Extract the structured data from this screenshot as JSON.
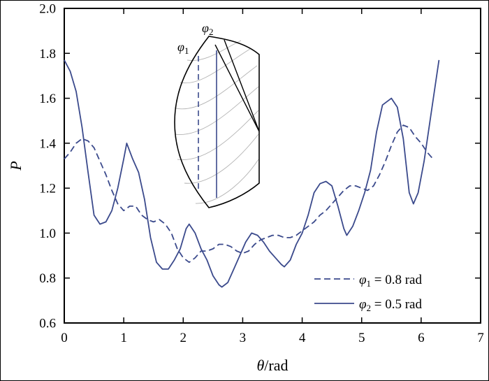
{
  "figure": {
    "background": "#ffffff",
    "border_color": "#000000",
    "line_color": "#3b4a8c",
    "axis_color": "#000000"
  },
  "chart_data": {
    "type": "line",
    "title": "",
    "xlabel": "θ/rad",
    "xlabel_parts": {
      "symbol": "θ",
      "rest": "/rad"
    },
    "ylabel": "P",
    "xlim": [
      0,
      7
    ],
    "ylim": [
      0.6,
      2.0
    ],
    "xtick_labels": [
      "0",
      "1",
      "2",
      "3",
      "4",
      "5",
      "6",
      "7"
    ],
    "ytick_labels": [
      "0.6",
      "0.8",
      "1.0",
      "1.2",
      "1.4",
      "1.6",
      "1.8",
      "2.0"
    ],
    "grid": false,
    "axis_color": "#000000",
    "legend_position": "inside lower right",
    "legend": [
      {
        "symbol": "φ",
        "sub": "1",
        "rest": " = 0.8 rad",
        "label": "φ1 = 0.8 rad",
        "style": "dashed",
        "color": "#3b4a8c"
      },
      {
        "symbol": "φ",
        "sub": "2",
        "rest": " = 0.5 rad",
        "label": "φ2 = 0.5 rad",
        "style": "solid",
        "color": "#3b4a8c"
      }
    ],
    "series": [
      {
        "id": "phi1",
        "name": "φ1 = 0.8 rad",
        "style": "dashed",
        "color": "#3b4a8c",
        "points": [
          [
            0,
            1.33
          ],
          [
            0.1,
            1.36
          ],
          [
            0.2,
            1.4
          ],
          [
            0.3,
            1.42
          ],
          [
            0.4,
            1.41
          ],
          [
            0.5,
            1.38
          ],
          [
            0.6,
            1.32
          ],
          [
            0.7,
            1.26
          ],
          [
            0.8,
            1.19
          ],
          [
            0.9,
            1.13
          ],
          [
            1.0,
            1.1
          ],
          [
            1.1,
            1.12
          ],
          [
            1.2,
            1.12
          ],
          [
            1.3,
            1.08
          ],
          [
            1.4,
            1.06
          ],
          [
            1.5,
            1.05
          ],
          [
            1.6,
            1.06
          ],
          [
            1.7,
            1.04
          ],
          [
            1.8,
            1.0
          ],
          [
            1.9,
            0.93
          ],
          [
            2.0,
            0.89
          ],
          [
            2.1,
            0.87
          ],
          [
            2.2,
            0.89
          ],
          [
            2.3,
            0.92
          ],
          [
            2.4,
            0.92
          ],
          [
            2.5,
            0.93
          ],
          [
            2.6,
            0.95
          ],
          [
            2.7,
            0.95
          ],
          [
            2.8,
            0.94
          ],
          [
            2.9,
            0.92
          ],
          [
            3.0,
            0.91
          ],
          [
            3.1,
            0.92
          ],
          [
            3.2,
            0.95
          ],
          [
            3.3,
            0.97
          ],
          [
            3.4,
            0.98
          ],
          [
            3.5,
            0.99
          ],
          [
            3.6,
            0.99
          ],
          [
            3.7,
            0.98
          ],
          [
            3.8,
            0.98
          ],
          [
            3.9,
            0.99
          ],
          [
            4.0,
            1.01
          ],
          [
            4.1,
            1.03
          ],
          [
            4.2,
            1.05
          ],
          [
            4.3,
            1.08
          ],
          [
            4.4,
            1.1
          ],
          [
            4.5,
            1.13
          ],
          [
            4.6,
            1.16
          ],
          [
            4.7,
            1.19
          ],
          [
            4.8,
            1.21
          ],
          [
            4.9,
            1.21
          ],
          [
            5.0,
            1.2
          ],
          [
            5.1,
            1.19
          ],
          [
            5.2,
            1.21
          ],
          [
            5.3,
            1.26
          ],
          [
            5.4,
            1.32
          ],
          [
            5.5,
            1.39
          ],
          [
            5.6,
            1.45
          ],
          [
            5.7,
            1.48
          ],
          [
            5.8,
            1.47
          ],
          [
            5.9,
            1.43
          ],
          [
            6.0,
            1.4
          ],
          [
            6.1,
            1.36
          ],
          [
            6.2,
            1.33
          ]
        ]
      },
      {
        "id": "phi2",
        "name": "φ2 = 0.5 rad",
        "style": "solid",
        "color": "#3b4a8c",
        "points": [
          [
            0,
            1.77
          ],
          [
            0.1,
            1.72
          ],
          [
            0.2,
            1.63
          ],
          [
            0.3,
            1.47
          ],
          [
            0.4,
            1.27
          ],
          [
            0.5,
            1.08
          ],
          [
            0.6,
            1.04
          ],
          [
            0.7,
            1.05
          ],
          [
            0.8,
            1.1
          ],
          [
            0.9,
            1.2
          ],
          [
            1.0,
            1.33
          ],
          [
            1.05,
            1.4
          ],
          [
            1.15,
            1.33
          ],
          [
            1.25,
            1.27
          ],
          [
            1.35,
            1.15
          ],
          [
            1.45,
            0.98
          ],
          [
            1.55,
            0.87
          ],
          [
            1.65,
            0.84
          ],
          [
            1.75,
            0.84
          ],
          [
            1.85,
            0.88
          ],
          [
            1.95,
            0.93
          ],
          [
            2.05,
            1.02
          ],
          [
            2.1,
            1.04
          ],
          [
            2.2,
            1.0
          ],
          [
            2.3,
            0.93
          ],
          [
            2.4,
            0.88
          ],
          [
            2.5,
            0.81
          ],
          [
            2.6,
            0.77
          ],
          [
            2.65,
            0.76
          ],
          [
            2.75,
            0.78
          ],
          [
            2.85,
            0.84
          ],
          [
            2.95,
            0.9
          ],
          [
            3.05,
            0.96
          ],
          [
            3.15,
            1.0
          ],
          [
            3.25,
            0.99
          ],
          [
            3.35,
            0.96
          ],
          [
            3.45,
            0.92
          ],
          [
            3.55,
            0.89
          ],
          [
            3.65,
            0.86
          ],
          [
            3.7,
            0.85
          ],
          [
            3.8,
            0.88
          ],
          [
            3.9,
            0.95
          ],
          [
            4.0,
            1.0
          ],
          [
            4.1,
            1.08
          ],
          [
            4.2,
            1.18
          ],
          [
            4.3,
            1.22
          ],
          [
            4.4,
            1.23
          ],
          [
            4.5,
            1.21
          ],
          [
            4.6,
            1.12
          ],
          [
            4.7,
            1.02
          ],
          [
            4.75,
            0.99
          ],
          [
            4.85,
            1.03
          ],
          [
            4.95,
            1.1
          ],
          [
            5.05,
            1.18
          ],
          [
            5.15,
            1.28
          ],
          [
            5.25,
            1.45
          ],
          [
            5.35,
            1.57
          ],
          [
            5.45,
            1.59
          ],
          [
            5.5,
            1.6
          ],
          [
            5.6,
            1.56
          ],
          [
            5.7,
            1.42
          ],
          [
            5.8,
            1.18
          ],
          [
            5.87,
            1.13
          ],
          [
            5.95,
            1.18
          ],
          [
            6.05,
            1.32
          ],
          [
            6.15,
            1.5
          ],
          [
            6.25,
            1.68
          ],
          [
            6.3,
            1.77
          ]
        ]
      }
    ]
  },
  "inset": {
    "labels": [
      {
        "symbol": "φ",
        "sub": "1"
      },
      {
        "symbol": "φ",
        "sub": "2"
      }
    ]
  }
}
